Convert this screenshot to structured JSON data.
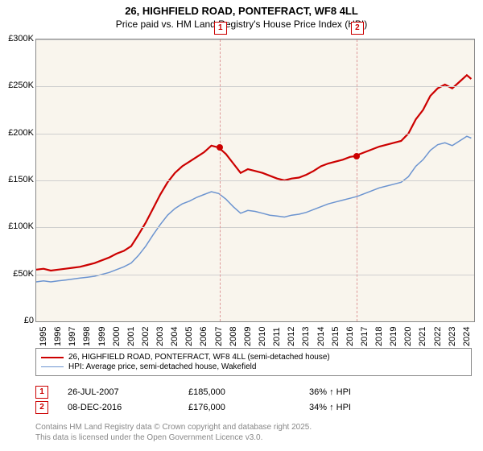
{
  "title": {
    "line1": "26, HIGHFIELD ROAD, PONTEFRACT, WF8 4LL",
    "line2": "Price paid vs. HM Land Registry's House Price Index (HPI)"
  },
  "chart": {
    "type": "line",
    "background_color": "#f9f5ed",
    "grid_color": "#cfcfcf",
    "border_color": "#888888",
    "ylim": [
      0,
      300000
    ],
    "ytick_step": 50000,
    "ytick_labels": [
      "£0",
      "£50K",
      "£100K",
      "£150K",
      "£200K",
      "£250K",
      "£300K"
    ],
    "xlim": [
      1995,
      2025
    ],
    "xtick_step": 1,
    "xtick_labels": [
      "1995",
      "1996",
      "1997",
      "1998",
      "1999",
      "2000",
      "2001",
      "2002",
      "2003",
      "2004",
      "2005",
      "2006",
      "2007",
      "2008",
      "2009",
      "2010",
      "2011",
      "2012",
      "2013",
      "2014",
      "2015",
      "2016",
      "2017",
      "2018",
      "2019",
      "2020",
      "2021",
      "2022",
      "2023",
      "2024"
    ],
    "series": [
      {
        "name": "26, HIGHFIELD ROAD, PONTEFRACT, WF8 4LL (semi-detached house)",
        "color": "#cc0000",
        "line_width": 2.2,
        "data": [
          [
            1995,
            55000
          ],
          [
            1995.5,
            56000
          ],
          [
            1996,
            54000
          ],
          [
            1996.5,
            55000
          ],
          [
            1997,
            56000
          ],
          [
            1997.5,
            57000
          ],
          [
            1998,
            58000
          ],
          [
            1998.5,
            60000
          ],
          [
            1999,
            62000
          ],
          [
            1999.5,
            65000
          ],
          [
            2000,
            68000
          ],
          [
            2000.5,
            72000
          ],
          [
            2001,
            75000
          ],
          [
            2001.5,
            80000
          ],
          [
            2002,
            92000
          ],
          [
            2002.5,
            105000
          ],
          [
            2003,
            120000
          ],
          [
            2003.5,
            135000
          ],
          [
            2004,
            148000
          ],
          [
            2004.5,
            158000
          ],
          [
            2005,
            165000
          ],
          [
            2005.5,
            170000
          ],
          [
            2006,
            175000
          ],
          [
            2006.5,
            180000
          ],
          [
            2007,
            187000
          ],
          [
            2007.5,
            185000
          ],
          [
            2008,
            178000
          ],
          [
            2008.5,
            168000
          ],
          [
            2009,
            158000
          ],
          [
            2009.5,
            162000
          ],
          [
            2010,
            160000
          ],
          [
            2010.5,
            158000
          ],
          [
            2011,
            155000
          ],
          [
            2011.5,
            152000
          ],
          [
            2012,
            150000
          ],
          [
            2012.5,
            152000
          ],
          [
            2013,
            153000
          ],
          [
            2013.5,
            156000
          ],
          [
            2014,
            160000
          ],
          [
            2014.5,
            165000
          ],
          [
            2015,
            168000
          ],
          [
            2015.5,
            170000
          ],
          [
            2016,
            172000
          ],
          [
            2016.5,
            175000
          ],
          [
            2016.94,
            176000
          ],
          [
            2017,
            177000
          ],
          [
            2017.5,
            180000
          ],
          [
            2018,
            183000
          ],
          [
            2018.5,
            186000
          ],
          [
            2019,
            188000
          ],
          [
            2019.5,
            190000
          ],
          [
            2020,
            192000
          ],
          [
            2020.5,
            200000
          ],
          [
            2021,
            215000
          ],
          [
            2021.5,
            225000
          ],
          [
            2022,
            240000
          ],
          [
            2022.5,
            248000
          ],
          [
            2023,
            252000
          ],
          [
            2023.5,
            248000
          ],
          [
            2024,
            255000
          ],
          [
            2024.5,
            262000
          ],
          [
            2024.8,
            258000
          ]
        ]
      },
      {
        "name": "HPI: Average price, semi-detached house, Wakefield",
        "color": "#6c94d0",
        "line_width": 1.5,
        "data": [
          [
            1995,
            42000
          ],
          [
            1995.5,
            43000
          ],
          [
            1996,
            42000
          ],
          [
            1996.5,
            43000
          ],
          [
            1997,
            44000
          ],
          [
            1997.5,
            45000
          ],
          [
            1998,
            46000
          ],
          [
            1998.5,
            47000
          ],
          [
            1999,
            48000
          ],
          [
            1999.5,
            50000
          ],
          [
            2000,
            52000
          ],
          [
            2000.5,
            55000
          ],
          [
            2001,
            58000
          ],
          [
            2001.5,
            62000
          ],
          [
            2002,
            70000
          ],
          [
            2002.5,
            80000
          ],
          [
            2003,
            92000
          ],
          [
            2003.5,
            103000
          ],
          [
            2004,
            113000
          ],
          [
            2004.5,
            120000
          ],
          [
            2005,
            125000
          ],
          [
            2005.5,
            128000
          ],
          [
            2006,
            132000
          ],
          [
            2006.5,
            135000
          ],
          [
            2007,
            138000
          ],
          [
            2007.5,
            136000
          ],
          [
            2008,
            130000
          ],
          [
            2008.5,
            122000
          ],
          [
            2009,
            115000
          ],
          [
            2009.5,
            118000
          ],
          [
            2010,
            117000
          ],
          [
            2010.5,
            115000
          ],
          [
            2011,
            113000
          ],
          [
            2011.5,
            112000
          ],
          [
            2012,
            111000
          ],
          [
            2012.5,
            113000
          ],
          [
            2013,
            114000
          ],
          [
            2013.5,
            116000
          ],
          [
            2014,
            119000
          ],
          [
            2014.5,
            122000
          ],
          [
            2015,
            125000
          ],
          [
            2015.5,
            127000
          ],
          [
            2016,
            129000
          ],
          [
            2016.5,
            131000
          ],
          [
            2017,
            133000
          ],
          [
            2017.5,
            136000
          ],
          [
            2018,
            139000
          ],
          [
            2018.5,
            142000
          ],
          [
            2019,
            144000
          ],
          [
            2019.5,
            146000
          ],
          [
            2020,
            148000
          ],
          [
            2020.5,
            154000
          ],
          [
            2021,
            165000
          ],
          [
            2021.5,
            172000
          ],
          [
            2022,
            182000
          ],
          [
            2022.5,
            188000
          ],
          [
            2023,
            190000
          ],
          [
            2023.5,
            187000
          ],
          [
            2024,
            192000
          ],
          [
            2024.5,
            197000
          ],
          [
            2024.8,
            195000
          ]
        ]
      }
    ],
    "markers": [
      {
        "n": "1",
        "x": 2007.56,
        "y": 185000,
        "color": "#cc0000"
      },
      {
        "n": "2",
        "x": 2016.94,
        "y": 176000,
        "color": "#cc0000"
      }
    ]
  },
  "legend": {
    "items": [
      {
        "label": "26, HIGHFIELD ROAD, PONTEFRACT, WF8 4LL (semi-detached house)",
        "color": "#cc0000",
        "width": 2.2
      },
      {
        "label": "HPI: Average price, semi-detached house, Wakefield",
        "color": "#6c94d0",
        "width": 1.5
      }
    ]
  },
  "data_rows": [
    {
      "n": "1",
      "date": "26-JUL-2007",
      "price": "£185,000",
      "delta": "36% ↑ HPI"
    },
    {
      "n": "2",
      "date": "08-DEC-2016",
      "price": "£176,000",
      "delta": "34% ↑ HPI"
    }
  ],
  "footnote": {
    "line1": "Contains HM Land Registry data © Crown copyright and database right 2025.",
    "line2": "This data is licensed under the Open Government Licence v3.0."
  }
}
